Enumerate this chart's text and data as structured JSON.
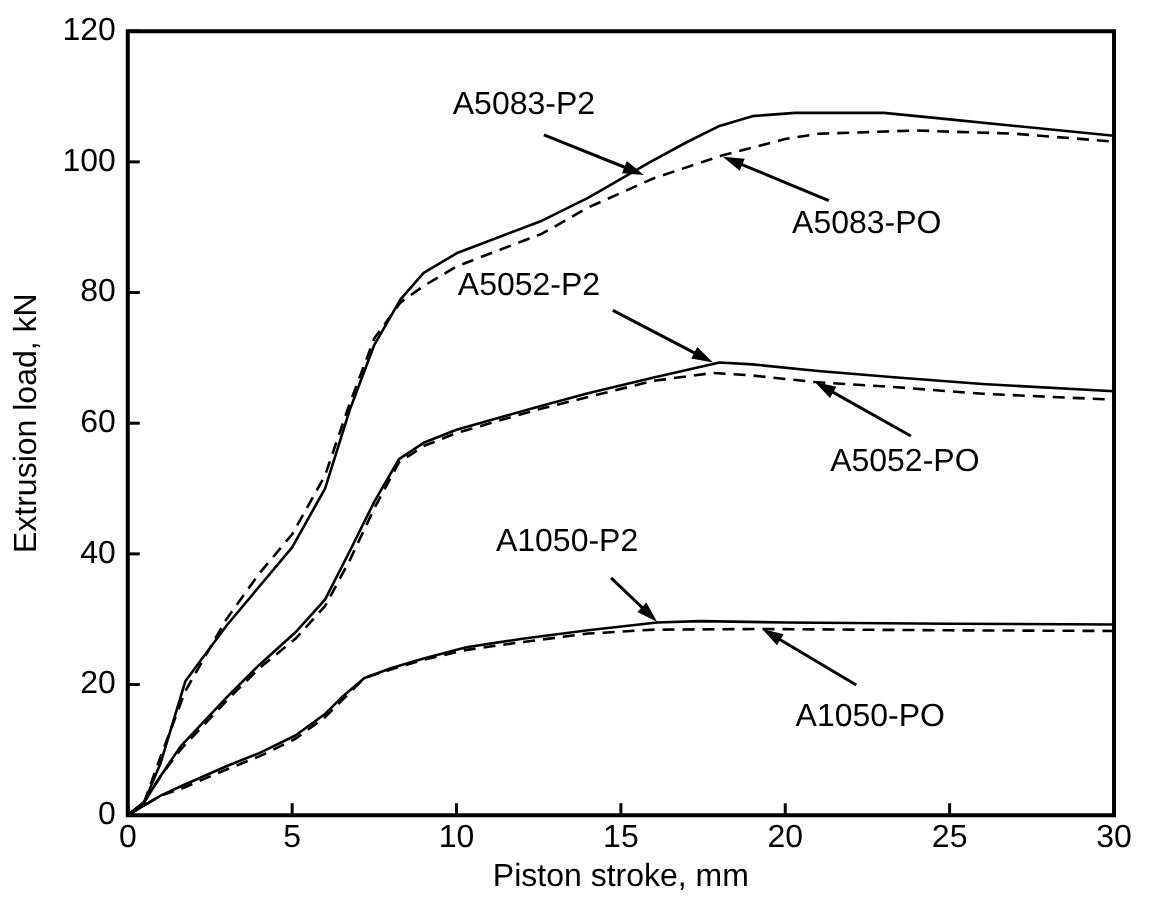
{
  "chart_data": {
    "type": "line",
    "xlabel": "Piston stroke, mm",
    "ylabel": "Extrusion load, kN",
    "xlim": [
      0,
      30
    ],
    "ylim": [
      0,
      120
    ],
    "xticks": [
      0,
      5,
      10,
      15,
      20,
      25,
      30
    ],
    "yticks": [
      0,
      20,
      40,
      60,
      80,
      100,
      120
    ],
    "grid": false,
    "legend": false,
    "series": [
      {
        "color": "#000000",
        "line_style": "solid",
        "x": [
          0,
          0.5,
          1,
          1.75,
          3,
          4,
          5,
          6,
          6.75,
          7.5,
          8.3,
          9,
          10,
          12.6,
          14,
          15.9,
          17,
          18,
          19,
          20.3,
          23,
          25,
          27,
          30
        ],
        "values": [
          0,
          2,
          8,
          20.5,
          29,
          35,
          41,
          50,
          62,
          72,
          79,
          83,
          86,
          91,
          94.5,
          100,
          103,
          105.5,
          107,
          107.5,
          107.5,
          106.5,
          105.5,
          104
        ]
      },
      {
        "color": "#000000",
        "line_style": "dashed",
        "x": [
          0,
          0.5,
          1,
          1.75,
          3,
          4,
          5,
          6,
          6.75,
          7.5,
          8.3,
          9,
          10,
          12.6,
          14,
          16,
          18.1,
          20,
          21,
          24,
          27,
          30
        ],
        "values": [
          0,
          2,
          9,
          19,
          30,
          37,
          43,
          52,
          63,
          73,
          78.5,
          81,
          84,
          89,
          93,
          97.5,
          101,
          103.5,
          104.3,
          104.8,
          104.3,
          103.1
        ]
      },
      {
        "color": "#000000",
        "line_style": "solid",
        "x": [
          0,
          0.5,
          1,
          1.6,
          3,
          4,
          5.1,
          6,
          6.75,
          7.5,
          8.25,
          9,
          10,
          12.4,
          14,
          16,
          18,
          19,
          21,
          23.4,
          26,
          30
        ],
        "values": [
          0,
          2,
          6,
          10.5,
          18,
          23,
          28,
          33,
          40.4,
          48,
          54.5,
          57,
          59,
          62.4,
          64.6,
          67,
          69.3,
          69,
          68,
          67,
          66,
          64.9
        ]
      },
      {
        "color": "#000000",
        "line_style": "dashed",
        "x": [
          0,
          0.5,
          1,
          1.6,
          3,
          4,
          5.1,
          6,
          6.75,
          7.5,
          8.25,
          9,
          10,
          12.4,
          14,
          16,
          17.8,
          19,
          20.9,
          23.4,
          26,
          30
        ],
        "values": [
          0,
          2,
          6,
          10,
          17.5,
          22.5,
          27,
          32,
          39,
          47,
          54,
          56.5,
          58.5,
          62,
          64,
          66.5,
          67.7,
          67.3,
          66.3,
          65.5,
          64.5,
          63.6
        ]
      },
      {
        "color": "#000000",
        "line_style": "solid",
        "x": [
          0,
          0.5,
          1,
          1.6,
          3,
          4,
          5.1,
          6,
          6.5,
          7.2,
          8,
          9,
          10.3,
          12,
          14,
          16.1,
          17.4,
          20,
          25,
          30
        ],
        "values": [
          0,
          1.5,
          3,
          4.4,
          7.5,
          9.5,
          12.2,
          15.5,
          18,
          21,
          22.5,
          24,
          25.7,
          27,
          28.3,
          29.5,
          29.7,
          29.5,
          29.3,
          29.2
        ]
      },
      {
        "color": "#000000",
        "line_style": "dashed",
        "x": [
          0,
          0.5,
          1,
          1.6,
          3,
          4,
          5.1,
          6,
          6.5,
          7.2,
          8,
          9,
          10.3,
          12,
          14,
          16,
          19.3,
          25,
          30
        ],
        "values": [
          0,
          1.5,
          3,
          4,
          7,
          9,
          11.7,
          15,
          17.5,
          21,
          22.3,
          23.8,
          25.3,
          26.5,
          27.8,
          28.4,
          28.5,
          28.3,
          28.2
        ]
      }
    ],
    "annotations": [
      {
        "text": "A5083-P2",
        "x": 15.7,
        "y": 98
      },
      {
        "text": "A5083-PO",
        "x": 18.1,
        "y": 100.8
      },
      {
        "text": "A5052-P2",
        "x": 17.8,
        "y": 69.3
      },
      {
        "text": "A5052-PO",
        "x": 20.9,
        "y": 66.3
      },
      {
        "text": "A1050-P2",
        "x": 16.1,
        "y": 29.6
      },
      {
        "text": "A1050-PO",
        "x": 19.3,
        "y": 28.5
      }
    ]
  }
}
